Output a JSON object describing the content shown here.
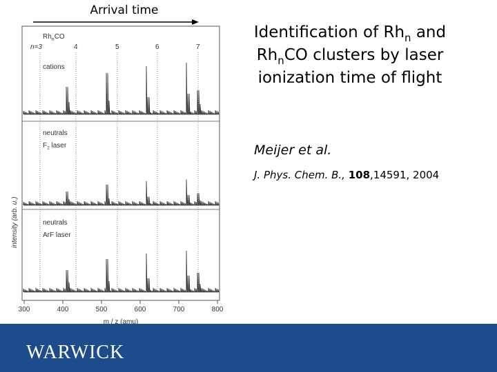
{
  "header": {
    "arrow_label": "Arrival time"
  },
  "title": {
    "lines": [
      [
        "Identification of Rh",
        "n",
        " and"
      ],
      [
        "Rh",
        "n",
        "CO clusters by laser"
      ],
      [
        "ionization time of flight"
      ]
    ]
  },
  "author": "Meijer et al.",
  "citation": {
    "journal": "J. Phys. Chem. B., ",
    "volume": "108",
    "pages": ",14591, 2004"
  },
  "figure": {
    "legend": [
      "Rh",
      "n",
      "CO"
    ],
    "cluster_labels": [
      "n=3",
      "4",
      "5",
      "6",
      "7"
    ],
    "panels": [
      {
        "lines": [
          [
            "cations"
          ]
        ]
      },
      {
        "lines": [
          [
            "neutrals"
          ],
          [
            "F",
            "2",
            " laser"
          ]
        ]
      },
      {
        "lines": [
          [
            "neutrals"
          ],
          [
            "ArF laser"
          ]
        ]
      }
    ],
    "x_ticks": [
      300,
      400,
      500,
      600,
      700,
      800
    ],
    "x_label": "m / z (amu)",
    "y_label": "intensity (arb. u.)"
  },
  "footer": {
    "logo": "WARWICK"
  }
}
